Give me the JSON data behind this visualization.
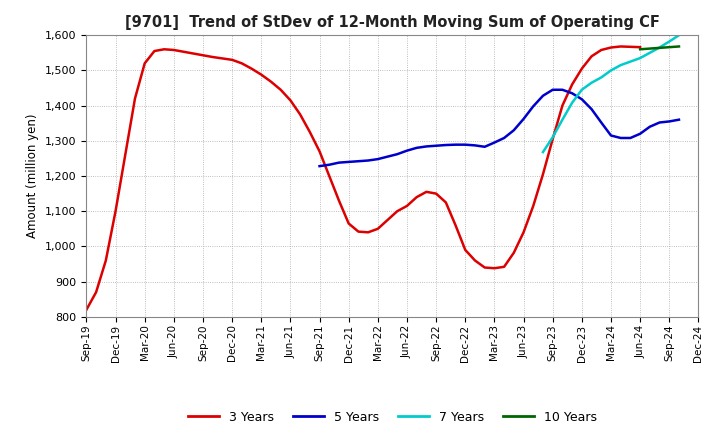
{
  "title": "[9701]  Trend of StDev of 12-Month Moving Sum of Operating CF",
  "ylabel": "Amount (million yen)",
  "ylim": [
    800,
    1600
  ],
  "yticks": [
    800,
    900,
    1000,
    1100,
    1200,
    1300,
    1400,
    1500,
    1600
  ],
  "background_color": "#ffffff",
  "plot_bg_color": "#ffffff",
  "grid_color": "#aaaaaa",
  "series": {
    "3yr": {
      "color": "#dd0000",
      "label": "3 Years",
      "x": [
        0,
        1,
        2,
        3,
        4,
        5,
        6,
        7,
        8,
        9,
        10,
        11,
        12,
        13,
        14,
        15,
        16,
        17,
        18,
        19,
        20,
        21,
        22,
        23,
        24,
        25,
        26,
        27,
        28,
        29,
        30,
        31,
        32,
        33,
        34,
        35,
        36,
        37,
        38,
        39,
        40,
        41,
        42,
        43,
        44,
        45,
        46,
        47,
        48,
        49,
        50,
        51,
        52,
        53,
        54,
        55,
        56,
        57
      ],
      "y": [
        820,
        870,
        960,
        1100,
        1260,
        1420,
        1520,
        1555,
        1560,
        1558,
        1553,
        1548,
        1543,
        1538,
        1534,
        1530,
        1520,
        1505,
        1488,
        1468,
        1445,
        1415,
        1375,
        1325,
        1270,
        1200,
        1130,
        1065,
        1042,
        1040,
        1050,
        1075,
        1100,
        1115,
        1140,
        1155,
        1150,
        1125,
        1060,
        990,
        960,
        940,
        938,
        942,
        982,
        1040,
        1115,
        1205,
        1305,
        1400,
        1460,
        1505,
        1540,
        1558,
        1565,
        1568,
        1567,
        1566
      ]
    },
    "5yr": {
      "color": "#0000cc",
      "label": "5 Years",
      "x": [
        24,
        25,
        26,
        27,
        28,
        29,
        30,
        31,
        32,
        33,
        34,
        35,
        36,
        37,
        38,
        39,
        40,
        41,
        42,
        43,
        44,
        45,
        46,
        47,
        48,
        49,
        50,
        51,
        52,
        53,
        54,
        55,
        56,
        57,
        58,
        59,
        60,
        61
      ],
      "y": [
        1228,
        1232,
        1238,
        1240,
        1242,
        1244,
        1248,
        1255,
        1262,
        1272,
        1280,
        1284,
        1286,
        1288,
        1289,
        1289,
        1287,
        1283,
        1295,
        1308,
        1330,
        1362,
        1398,
        1428,
        1445,
        1445,
        1435,
        1418,
        1390,
        1352,
        1315,
        1308,
        1308,
        1320,
        1340,
        1352,
        1355,
        1360
      ]
    },
    "7yr": {
      "color": "#00cccc",
      "label": "7 Years",
      "x": [
        47,
        48,
        49,
        50,
        51,
        52,
        53,
        54,
        55,
        56,
        57,
        58,
        59,
        60,
        61
      ],
      "y": [
        1268,
        1310,
        1360,
        1408,
        1445,
        1465,
        1480,
        1500,
        1515,
        1525,
        1535,
        1550,
        1565,
        1582,
        1600
      ]
    },
    "10yr": {
      "color": "#006600",
      "label": "10 Years",
      "x": [
        57,
        58,
        59,
        60,
        61
      ],
      "y": [
        1560,
        1562,
        1564,
        1566,
        1568
      ]
    }
  },
  "xtick_labels": [
    "Sep-19",
    "Dec-19",
    "Mar-20",
    "Jun-20",
    "Sep-20",
    "Dec-20",
    "Mar-21",
    "Jun-21",
    "Sep-21",
    "Dec-21",
    "Mar-22",
    "Jun-22",
    "Sep-22",
    "Dec-22",
    "Mar-23",
    "Jun-23",
    "Sep-23",
    "Dec-23",
    "Mar-24",
    "Jun-24",
    "Sep-24",
    "Dec-24"
  ],
  "xtick_positions": [
    0,
    3,
    6,
    9,
    12,
    15,
    18,
    21,
    24,
    27,
    30,
    33,
    36,
    39,
    42,
    45,
    48,
    51,
    54,
    57,
    60,
    63
  ],
  "xlim": [
    0,
    63
  ]
}
